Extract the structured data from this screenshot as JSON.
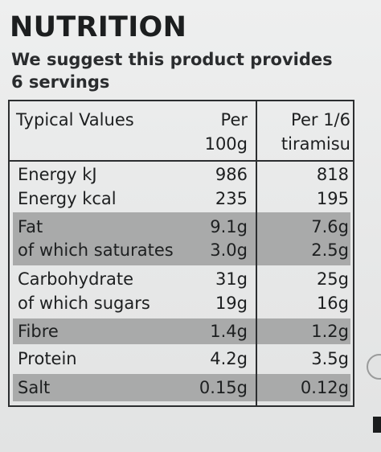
{
  "label": {
    "title": "NUTRITION",
    "servings_line1": "We suggest this product provides",
    "servings_line2": "6 servings"
  },
  "table": {
    "header": {
      "typical": "Typical Values",
      "per100_line1": "Per",
      "per100_line2": "100g",
      "perserve_line1": "Per 1/6",
      "perserve_line2": "tiramisu"
    },
    "rows": [
      {
        "label": "Energy kJ",
        "per100": "986",
        "perserve": "818",
        "shaded": false
      },
      {
        "label": "Energy kcal",
        "per100": "235",
        "perserve": "195",
        "shaded": false
      },
      {
        "label": "Fat",
        "per100": "9.1g",
        "perserve": "7.6g",
        "shaded": true
      },
      {
        "label": "of which saturates",
        "per100": "3.0g",
        "perserve": "2.5g",
        "shaded": true
      },
      {
        "label": "Carbohydrate",
        "per100": "31g",
        "perserve": "25g",
        "shaded": false
      },
      {
        "label": "of which sugars",
        "per100": "19g",
        "perserve": "16g",
        "shaded": false
      },
      {
        "label": "Fibre",
        "per100": "1.4g",
        "perserve": "1.2g",
        "shaded": true
      },
      {
        "label": "Protein",
        "per100": "4.2g",
        "perserve": "3.5g",
        "shaded": false
      },
      {
        "label": "Salt",
        "per100": "0.15g",
        "perserve": "0.12g",
        "shaded": true
      }
    ]
  },
  "colors": {
    "background": "#ebecec",
    "text": "#1d1f20",
    "shade": "#a9aaaa",
    "rule": "#2c2e30"
  }
}
